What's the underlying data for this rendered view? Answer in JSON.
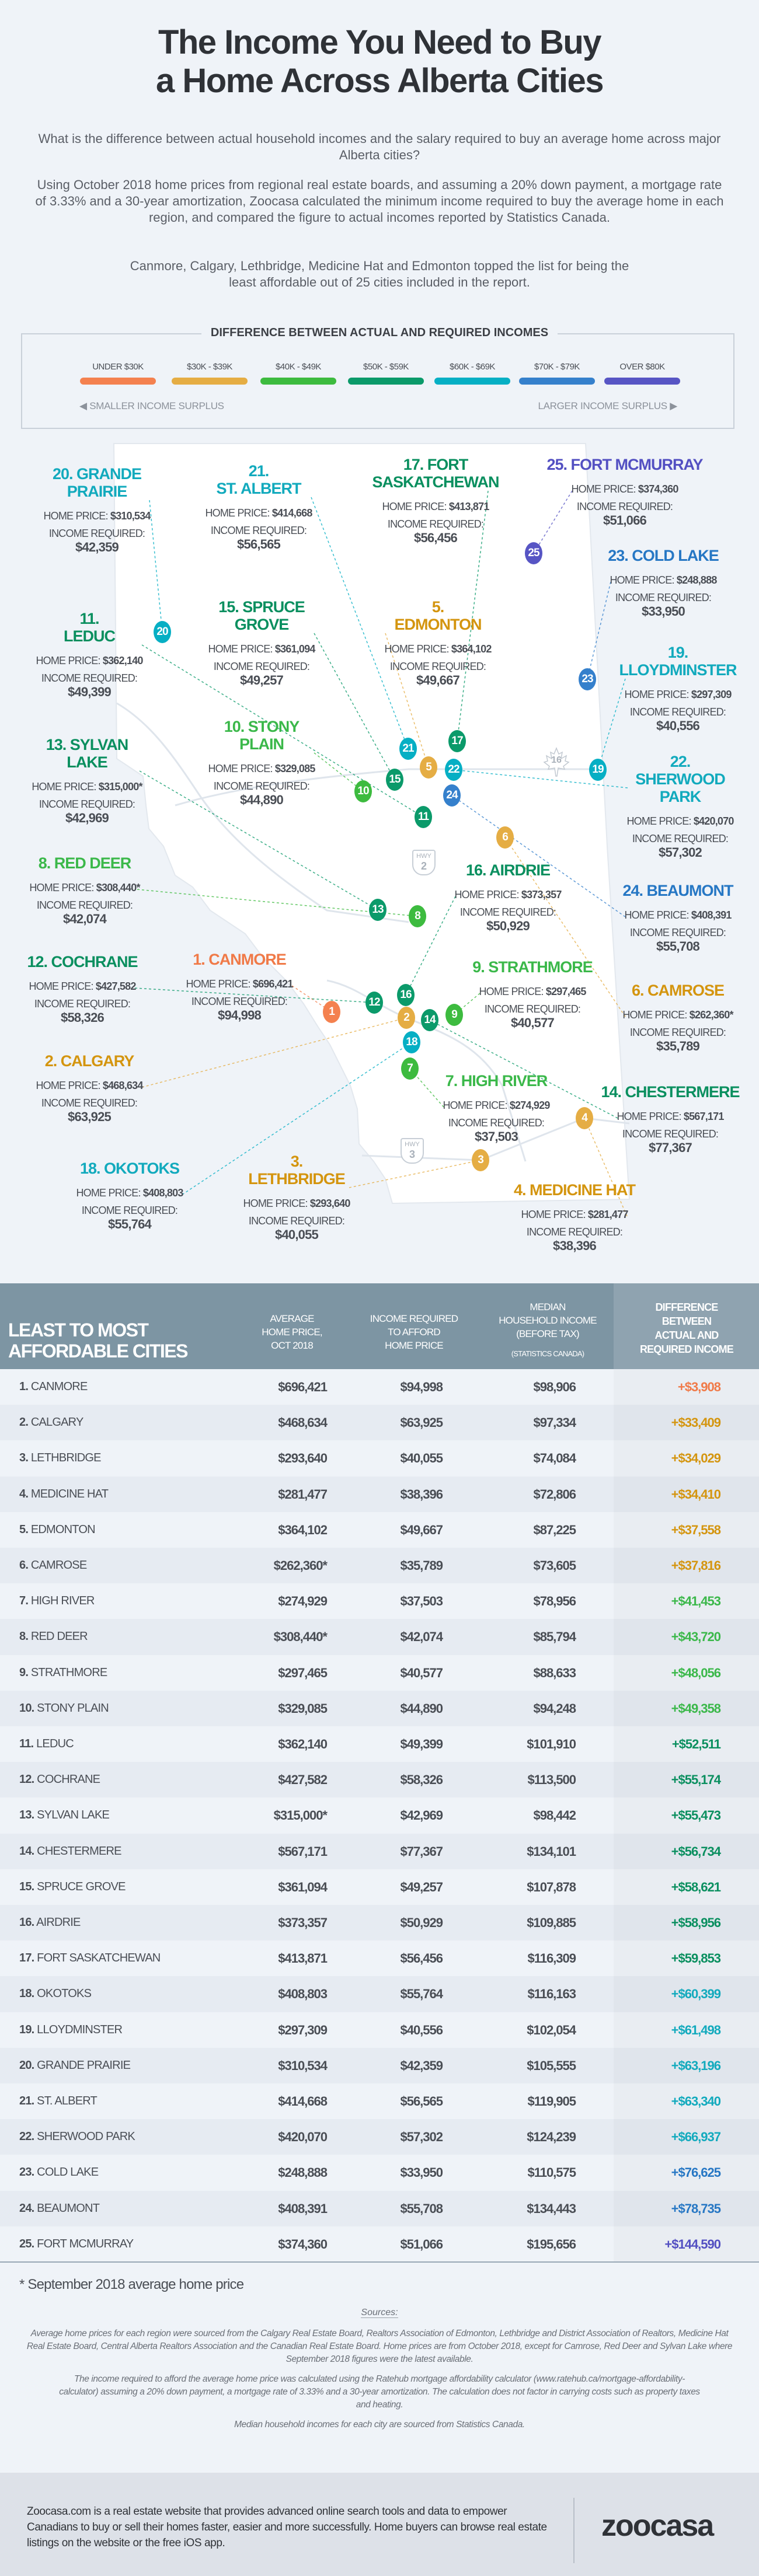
{
  "title": "The Income You Need to Buy\na Home Across Alberta Cities",
  "intro": [
    "What is the difference between actual household incomes and the salary required to buy an average home across major Alberta cities?",
    "Using October 2018 home prices from regional real estate boards, and assuming a 20% down payment, a mortgage rate of 3.33% and a 30-year amortization, Zoocasa calculated the minimum income required to buy the average home in each region, and compared the figure to actual incomes reported by Statistics Canada.",
    "Canmore, Calgary, Lethbridge, Medicine Hat and Edmonton topped the list for being the least affordable out of 25 cities included in the report."
  ],
  "legend": {
    "title": "DIFFERENCE BETWEEN ACTUAL AND REQUIRED INCOMES",
    "tiers": [
      {
        "label": "UNDER $30K",
        "color": "#f4814f",
        "text_color": "#f07a48"
      },
      {
        "label": "$30K - $39K",
        "color": "#e5ad44",
        "text_color": "#d4950f"
      },
      {
        "label": "$40K - $49K",
        "color": "#3dbb3f",
        "text_color": "#3bb84a"
      },
      {
        "label": "$50K - $59K",
        "color": "#0b9a6a",
        "text_color": "#0a8f5f"
      },
      {
        "label": "$60K - $69K",
        "color": "#06afc4",
        "text_color": "#12aabd"
      },
      {
        "label": "$70K - $79K",
        "color": "#3580cc",
        "text_color": "#2677c4"
      },
      {
        "label": "OVER $80K",
        "color": "#5755c4",
        "text_color": "#5350c2"
      }
    ],
    "smaller": "SMALLER INCOME SURPLUS",
    "larger": "LARGER INCOME SURPLUS"
  },
  "map": {
    "home_price_label": "HOME PRICE:",
    "income_required_label": "INCOME REQUIRED:",
    "highways": [
      {
        "label": "HWY",
        "number": "2"
      },
      {
        "label": "HWY",
        "number": "3"
      },
      {
        "label": "",
        "number": "16"
      }
    ]
  },
  "table": {
    "title": "LEAST TO MOST\nAFFORDABLE CITIES",
    "col_price": "AVERAGE\nHOME PRICE,\nOCT 2018",
    "col_income": "INCOME REQUIRED\nTO AFFORD\nHOME PRICE",
    "col_median": "MEDIAN\nHOUSEHOLD INCOME\n(BEFORE TAX)",
    "col_median_sub": "(STATISTICS CANADA)",
    "col_diff": "DIFFERENCE\nBETWEEN\nACTUAL AND\nREQUIRED INCOME"
  },
  "cities": [
    {
      "rank": "1.",
      "name": "CANMORE",
      "map_name": "1. CANMORE",
      "price": "$696,421",
      "income": "$94,998",
      "median": "$98,906",
      "diff": "+$3,908",
      "tier": 0
    },
    {
      "rank": "2.",
      "name": "CALGARY",
      "map_name": "2. CALGARY",
      "price": "$468,634",
      "income": "$63,925",
      "median": "$97,334",
      "diff": "+$33,409",
      "tier": 1
    },
    {
      "rank": "3.",
      "name": "LETHBRIDGE",
      "map_name": "3.\nLETHBRIDGE",
      "price": "$293,640",
      "income": "$40,055",
      "median": "$74,084",
      "diff": "+$34,029",
      "tier": 1
    },
    {
      "rank": "4.",
      "name": "MEDICINE HAT",
      "map_name": "4. MEDICINE HAT",
      "price": "$281,477",
      "income": "$38,396",
      "median": "$72,806",
      "diff": "+$34,410",
      "tier": 1
    },
    {
      "rank": "5.",
      "name": "EDMONTON",
      "map_name": "5.\nEDMONTON",
      "price": "$364,102",
      "income": "$49,667",
      "median": "$87,225",
      "diff": "+$37,558",
      "tier": 1
    },
    {
      "rank": "6.",
      "name": "CAMROSE",
      "map_name": "6. CAMROSE",
      "price": "$262,360*",
      "income": "$35,789",
      "median": "$73,605",
      "diff": "+$37,816",
      "tier": 1
    },
    {
      "rank": "7.",
      "name": "HIGH RIVER",
      "map_name": "7. HIGH RIVER",
      "price": "$274,929",
      "income": "$37,503",
      "median": "$78,956",
      "diff": "+$41,453",
      "tier": 2
    },
    {
      "rank": "8.",
      "name": "RED DEER",
      "map_name": "8. RED DEER",
      "price": "$308,440*",
      "income": "$42,074",
      "median": "$85,794",
      "diff": "+$43,720",
      "tier": 2
    },
    {
      "rank": "9.",
      "name": "STRATHMORE",
      "map_name": "9. STRATHMORE",
      "price": "$297,465",
      "income": "$40,577",
      "median": "$88,633",
      "diff": "+$48,056",
      "tier": 2
    },
    {
      "rank": "10.",
      "name": "STONY PLAIN",
      "map_name": "10. STONY\nPLAIN",
      "price": "$329,085",
      "income": "$44,890",
      "median": "$94,248",
      "diff": "+$49,358",
      "tier": 2
    },
    {
      "rank": "11.",
      "name": "LEDUC",
      "map_name": "11.\nLEDUC",
      "price": "$362,140",
      "income": "$49,399",
      "median": "$101,910",
      "diff": "+$52,511",
      "tier": 3
    },
    {
      "rank": "12.",
      "name": "COCHRANE",
      "map_name": "12. COCHRANE",
      "price": "$427,582",
      "income": "$58,326",
      "median": "$113,500",
      "diff": "+$55,174",
      "tier": 3
    },
    {
      "rank": "13.",
      "name": "SYLVAN LAKE",
      "map_name": "13. SYLVAN\nLAKE",
      "price": "$315,000*",
      "income": "$42,969",
      "median": "$98,442",
      "diff": "+$55,473",
      "tier": 3
    },
    {
      "rank": "14.",
      "name": "CHESTERMERE",
      "map_name": "14. CHESTERMERE",
      "price": "$567,171",
      "income": "$77,367",
      "median": "$134,101",
      "diff": "+$56,734",
      "tier": 3
    },
    {
      "rank": "15.",
      "name": "SPRUCE GROVE",
      "map_name": "15. SPRUCE\nGROVE",
      "price": "$361,094",
      "income": "$49,257",
      "median": "$107,878",
      "diff": "+$58,621",
      "tier": 3
    },
    {
      "rank": "16.",
      "name": "AIRDRIE",
      "map_name": "16. AIRDRIE",
      "price": "$373,357",
      "income": "$50,929",
      "median": "$109,885",
      "diff": "+$58,956",
      "tier": 3
    },
    {
      "rank": "17.",
      "name": "FORT SASKATCHEWAN",
      "map_name": "17. FORT\nSASKATCHEWAN",
      "price": "$413,871",
      "income": "$56,456",
      "median": "$116,309",
      "diff": "+$59,853",
      "tier": 3
    },
    {
      "rank": "18.",
      "name": "OKOTOKS",
      "map_name": "18. OKOTOKS",
      "price": "$408,803",
      "income": "$55,764",
      "median": "$116,163",
      "diff": "+$60,399",
      "tier": 4
    },
    {
      "rank": "19.",
      "name": "LLOYDMINSTER",
      "map_name": "19.\nLLOYDMINSTER",
      "price": "$297,309",
      "income": "$40,556",
      "median": "$102,054",
      "diff": "+$61,498",
      "tier": 4
    },
    {
      "rank": "20.",
      "name": "GRANDE PRAIRIE",
      "map_name": "20. GRANDE\nPRAIRIE",
      "price": "$310,534",
      "income": "$42,359",
      "median": "$105,555",
      "diff": "+$63,196",
      "tier": 4
    },
    {
      "rank": "21.",
      "name": "ST. ALBERT",
      "map_name": "21.\nST. ALBERT",
      "price": "$414,668",
      "income": "$56,565",
      "median": "$119,905",
      "diff": "+$63,340",
      "tier": 4
    },
    {
      "rank": "22.",
      "name": "SHERWOOD PARK",
      "map_name": "22.\nSHERWOOD\nPARK",
      "price": "$420,070",
      "income": "$57,302",
      "median": "$124,239",
      "diff": "+$66,937",
      "tier": 4
    },
    {
      "rank": "23.",
      "name": "COLD LAKE",
      "map_name": "23. COLD LAKE",
      "price": "$248,888",
      "income": "$33,950",
      "median": "$110,575",
      "diff": "+$76,625",
      "tier": 5
    },
    {
      "rank": "24.",
      "name": "BEAUMONT",
      "map_name": "24. BEAUMONT",
      "price": "$408,391",
      "income": "$55,708",
      "median": "$134,443",
      "diff": "+$78,735",
      "tier": 5
    },
    {
      "rank": "25.",
      "name": "FORT MCMURRAY",
      "map_name": "25. FORT MCMURRAY",
      "price": "$374,360",
      "income": "$51,066",
      "median": "$195,656",
      "diff": "+$144,590",
      "tier": 6
    }
  ],
  "footnote": "* September 2018 average home price",
  "sources": {
    "title": "Sources:",
    "paragraphs": [
      "Average home prices for each region were sourced from the Calgary Real Estate Board, Realtors Association of Edmonton, Lethbridge and District Association of Realtors, Medicine Hat Real Estate Board, Central Alberta Realtors Association and the Canadian Real Estate Board. Home prices are from October 2018, except for Camrose, Red Deer and Sylvan Lake where September 2018 figures were the latest available.",
      "The income required to afford the average home price was calculated using the Ratehub mortgage affordability calculator (www.ratehub.ca/mortgage-affordability-calculator) assuming a 20% down payment, a mortgage rate of 3.33% and a 30-year amortization. The calculation does not factor in carrying costs such as property taxes and heating.",
      "Median household incomes for each city are sourced from Statistics Canada."
    ]
  },
  "footer": {
    "text": "Zoocasa.com is a real estate website that provides advanced online search tools and data to empower Canadians to buy or sell their homes faster, easier and more successfully. Home buyers can browse real estate listings on the website or the free iOS app.",
    "logo": "zoocasa"
  }
}
